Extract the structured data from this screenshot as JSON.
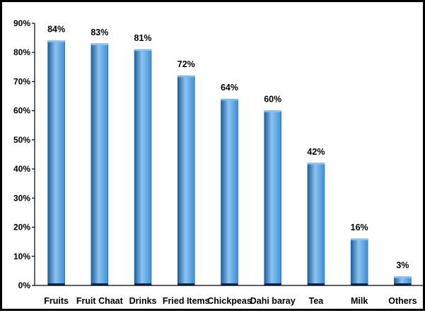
{
  "chart_data": {
    "type": "bar",
    "title": "",
    "xlabel": "",
    "ylabel": "",
    "categories": [
      "Fruits",
      "Fruit Chaat",
      "Drinks",
      "Fried Items",
      "Chickpeas",
      "Dahi baray",
      "Tea",
      "Milk",
      "Others"
    ],
    "values": [
      84,
      83,
      81,
      72,
      64,
      60,
      42,
      16,
      3
    ],
    "data_labels": [
      "84%",
      "83%",
      "81%",
      "72%",
      "64%",
      "60%",
      "42%",
      "16%",
      "3%"
    ],
    "ylim": [
      0,
      90
    ],
    "yticks": [
      0,
      10,
      20,
      30,
      40,
      50,
      60,
      70,
      80,
      90
    ],
    "ytick_labels": [
      "0%",
      "10%",
      "20%",
      "30%",
      "40%",
      "50%",
      "60%",
      "70%",
      "80%",
      "90%"
    ],
    "grid": false,
    "legend": "none",
    "bar_color": "#3d8fd6",
    "bar_color_light": "#8cc3f0",
    "bar_color_dark": "#1f5f9e"
  }
}
